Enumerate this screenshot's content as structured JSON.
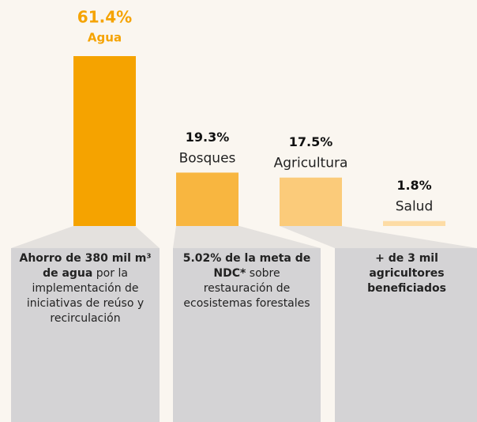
{
  "chart_data": {
    "type": "bar",
    "categories": [
      "Agua",
      "Bosques",
      "Agricultura",
      "Salud"
    ],
    "values": [
      61.4,
      19.3,
      17.5,
      1.8
    ],
    "value_labels": [
      "61.4%",
      "19.3%",
      "17.5%",
      "1.8%"
    ],
    "colors": [
      "#f5a300",
      "#f8b640",
      "#fbcb7a",
      "#fddca5"
    ],
    "cards": [
      {
        "bold": "Ahorro de 380 mil m³ de agua",
        "text": "por la implementación de iniciativas de reúso y recirculación"
      },
      {
        "bold": "5.02% de la meta de NDC*",
        "text": "sobre restauración de ecosistemas forestales"
      },
      {
        "bold": "+ de 3 mil agricultores beneficiados"
      }
    ]
  }
}
